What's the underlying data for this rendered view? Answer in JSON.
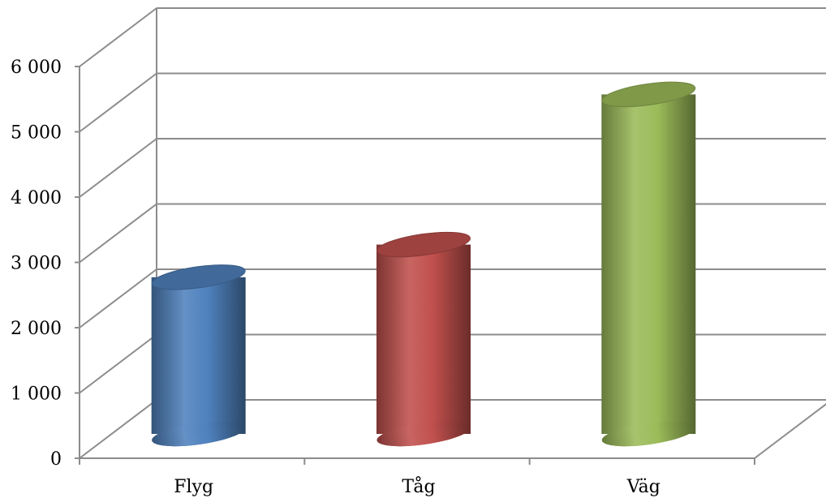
{
  "chart_data": {
    "type": "bar",
    "style": "3d-cylinder",
    "title": "",
    "xlabel": "",
    "ylabel": "",
    "categories": [
      "Flyg",
      "Tåg",
      "Väg"
    ],
    "values": [
      2400,
      2900,
      5200
    ],
    "colors": [
      "#4f81bd",
      "#c0504d",
      "#9bbb59"
    ],
    "ylim": [
      0,
      6000
    ],
    "yticks": [
      0,
      1000,
      2000,
      3000,
      4000,
      5000,
      6000
    ],
    "ytick_labels": [
      "0",
      "1 000",
      "2 000",
      "3 000",
      "4 000",
      "5 000",
      "6 000"
    ],
    "grid": true,
    "legend": "none"
  }
}
